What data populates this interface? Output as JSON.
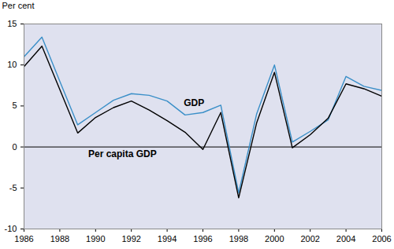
{
  "chart_data": {
    "type": "line",
    "y_label": "Per cent",
    "x": [
      1986,
      1987,
      1988,
      1989,
      1990,
      1991,
      1992,
      1993,
      1994,
      1995,
      1996,
      1997,
      1998,
      1999,
      2000,
      2001,
      2002,
      2003,
      2004,
      2005,
      2006
    ],
    "series": [
      {
        "name": "GDP",
        "color": "#3a8fc8",
        "values": [
          11,
          13.4,
          8,
          2.7,
          4.2,
          5.7,
          6.5,
          6.3,
          5.6,
          3.9,
          4.2,
          5.1,
          -5.6,
          4,
          10,
          0.6,
          1.9,
          3.3,
          8.6,
          7.4,
          6.9
        ]
      },
      {
        "name": "Per capita GDP",
        "color": "#000000",
        "values": [
          9.8,
          12.3,
          7,
          1.7,
          3.6,
          4.8,
          5.6,
          4.5,
          3.2,
          1.8,
          -0.3,
          4.2,
          -6.2,
          2.9,
          9.1,
          -0.1,
          1.5,
          3.5,
          7.7,
          7.1,
          6.2
        ]
      }
    ],
    "annotations": [
      {
        "text": "GDP",
        "x": 1995.5,
        "y": 5.4
      },
      {
        "text": "Per capita GDP",
        "x": 1991.5,
        "y": -0.9
      }
    ],
    "xlim": [
      1986,
      2006
    ],
    "xticks": [
      1986,
      1988,
      1990,
      1992,
      1994,
      1996,
      1998,
      2000,
      2002,
      2004,
      2006
    ],
    "ylim": [
      -10,
      15
    ],
    "yticks": [
      -10,
      -5,
      0,
      5,
      10,
      15
    ],
    "grid": false
  }
}
